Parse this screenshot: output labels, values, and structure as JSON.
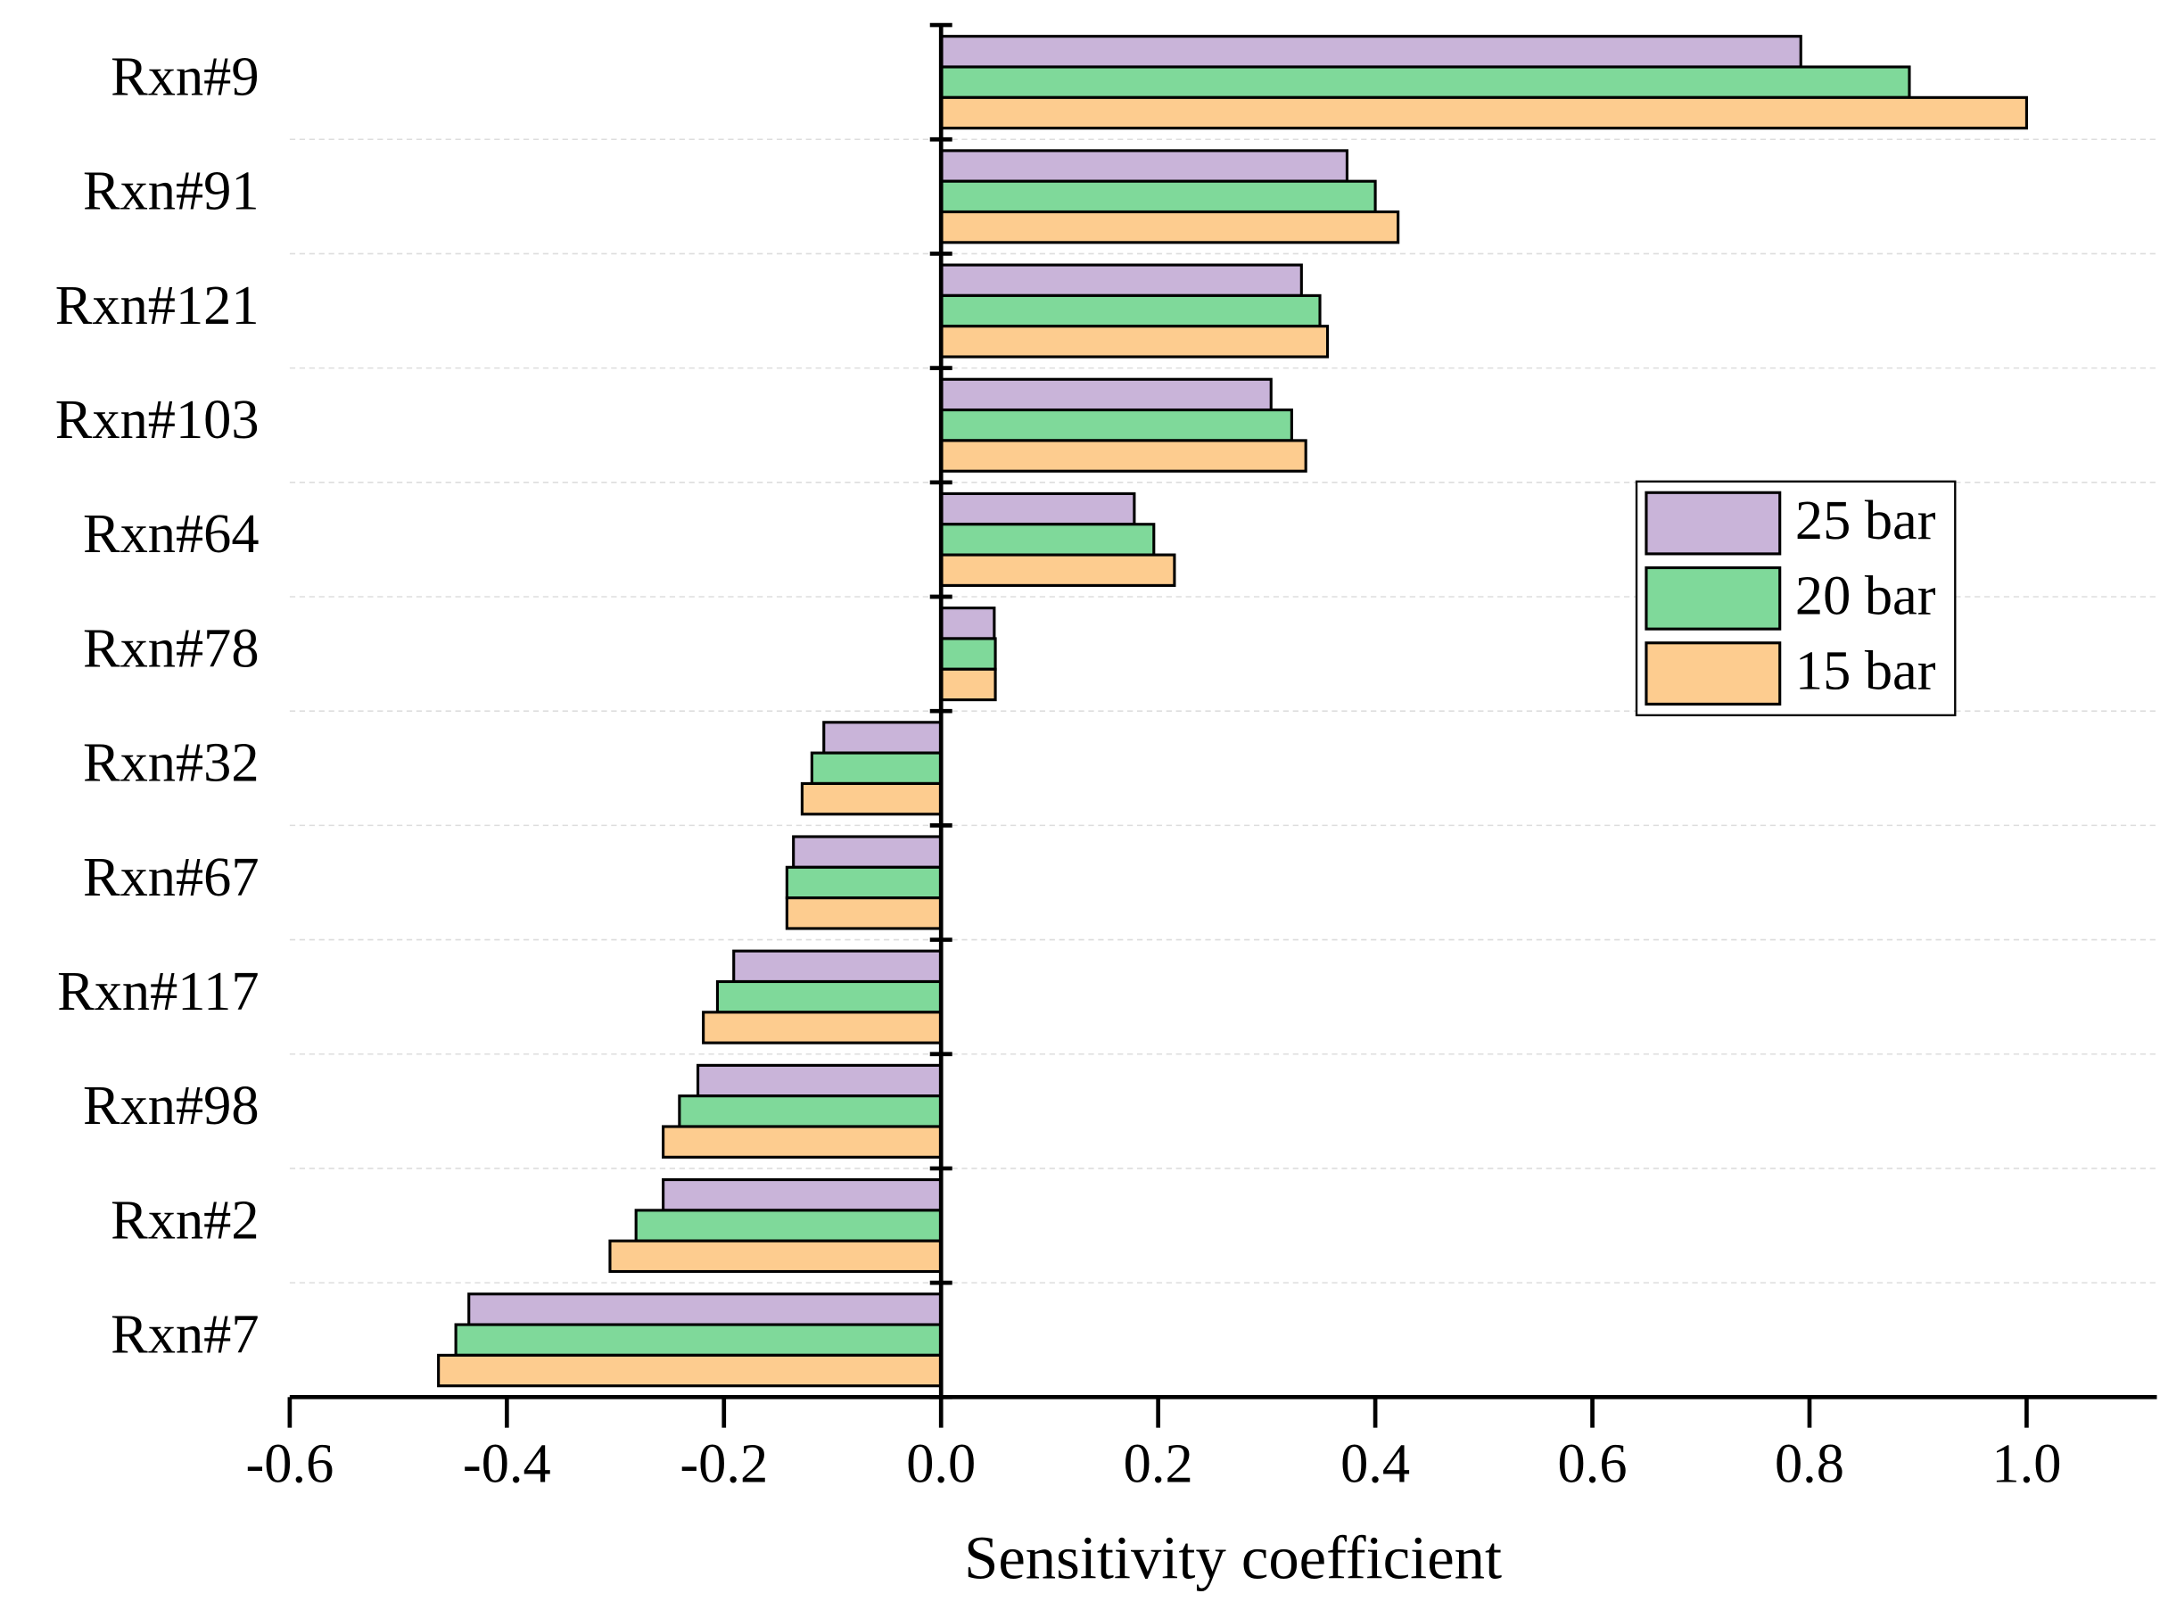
{
  "chart_data": {
    "type": "barh",
    "x_label": "Sensitivity coefficient",
    "categories": [
      "Rxn#9",
      "Rxn#91",
      "Rxn#121",
      "Rxn#103",
      "Rxn#64",
      "Rxn#78",
      "Rxn#32",
      "Rxn#67",
      "Rxn#117",
      "Rxn#98",
      "Rxn#2",
      "Rxn#7"
    ],
    "series": [
      {
        "name": "25 bar",
        "color": "#c9b4d9",
        "values": [
          0.792,
          0.374,
          0.332,
          0.304,
          0.178,
          0.049,
          -0.108,
          -0.136,
          -0.191,
          -0.224,
          -0.256,
          -0.435
        ]
      },
      {
        "name": "20 bar",
        "color": "#7fd99a",
        "values": [
          0.892,
          0.4,
          0.349,
          0.323,
          0.196,
          0.05,
          -0.119,
          -0.142,
          -0.206,
          -0.241,
          -0.281,
          -0.447
        ]
      },
      {
        "name": "15 bar",
        "color": "#fdcc8f",
        "values": [
          1.0,
          0.421,
          0.356,
          0.336,
          0.215,
          0.05,
          -0.128,
          -0.142,
          -0.219,
          -0.256,
          -0.305,
          -0.463
        ]
      }
    ],
    "xlim": [
      -0.6,
      1.12
    ],
    "xticks": [
      -0.6,
      -0.4,
      -0.2,
      {
        "value": 0,
        "label": "0.0"
      },
      0.2,
      0.4,
      0.6,
      0.8,
      {
        "value": 1,
        "label": "1.0"
      }
    ],
    "legend": "right"
  }
}
